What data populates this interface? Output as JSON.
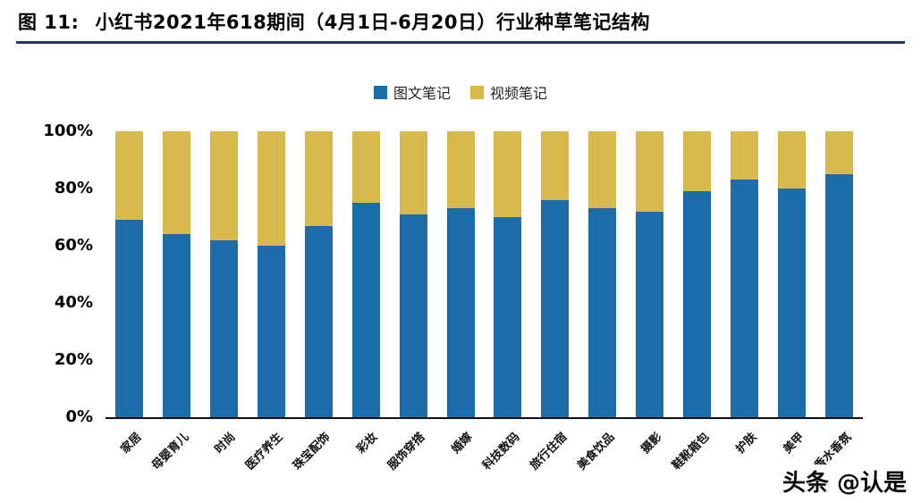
{
  "header": {
    "figure_label": "图 11:",
    "title": "小红书2021年618期间（4月1日-6月20日）行业种草笔记结构"
  },
  "watermark": "头条 @认是",
  "colors": {
    "image_notes_bar": "#1b6ca8",
    "video_notes_bar": "#d8b94e",
    "header_underline": "#1f3864",
    "axis_line": "#111111"
  },
  "chart_data": {
    "type": "bar",
    "stacked": true,
    "title": "小红书2021年618期间（4月1日-6月20日）行业种草笔记结构",
    "categories": [
      "家居",
      "母婴育儿",
      "时尚",
      "医疗养生",
      "珠宝配饰",
      "彩妆",
      "服饰穿搭",
      "婚嫁",
      "科技数码",
      "旅行住宿",
      "美食饮品",
      "摄影",
      "鞋靴箱包",
      "护肤",
      "美甲",
      "香水香氛"
    ],
    "series": [
      {
        "name": "图文笔记",
        "color": "#1b6ca8",
        "values": [
          69,
          64,
          62,
          60,
          67,
          75,
          71,
          73,
          70,
          76,
          73,
          72,
          79,
          83,
          80,
          85
        ]
      },
      {
        "name": "视频笔记",
        "color": "#d8b94e",
        "values": [
          31,
          36,
          38,
          40,
          33,
          25,
          29,
          27,
          30,
          24,
          27,
          28,
          21,
          17,
          20,
          15
        ]
      }
    ],
    "xlabel": "",
    "ylabel": "",
    "ylim": [
      0,
      100
    ],
    "yticks": [
      "0%",
      "20%",
      "40%",
      "60%",
      "80%",
      "100%"
    ],
    "grid": false,
    "legend_position": "top-center"
  }
}
